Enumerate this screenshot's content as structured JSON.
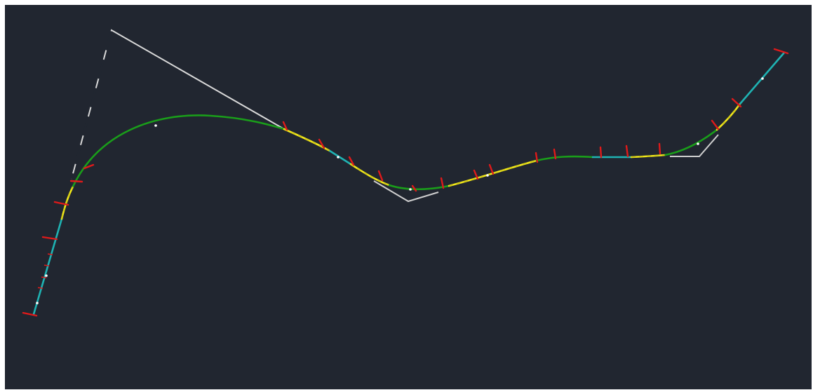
{
  "colors": {
    "canvas_background": "#212630",
    "outer_frame": "#ffffff",
    "tangent_polyline": "#d9d9d9",
    "tangent_segment": "#cfcfcf",
    "circular_curve": "#1a9e1a",
    "transition_curve": "#f2e81a",
    "tangent_section": "#1fb3b3",
    "station_tick": "#e01a1a",
    "station_dot": "#ffffff"
  },
  "elements": {
    "tangent_polyline": "tangent-polyline",
    "alignment_centerline": "alignment-centerline",
    "station_ticks": "station-tick-marks",
    "station_dots": "station-point-markers"
  }
}
